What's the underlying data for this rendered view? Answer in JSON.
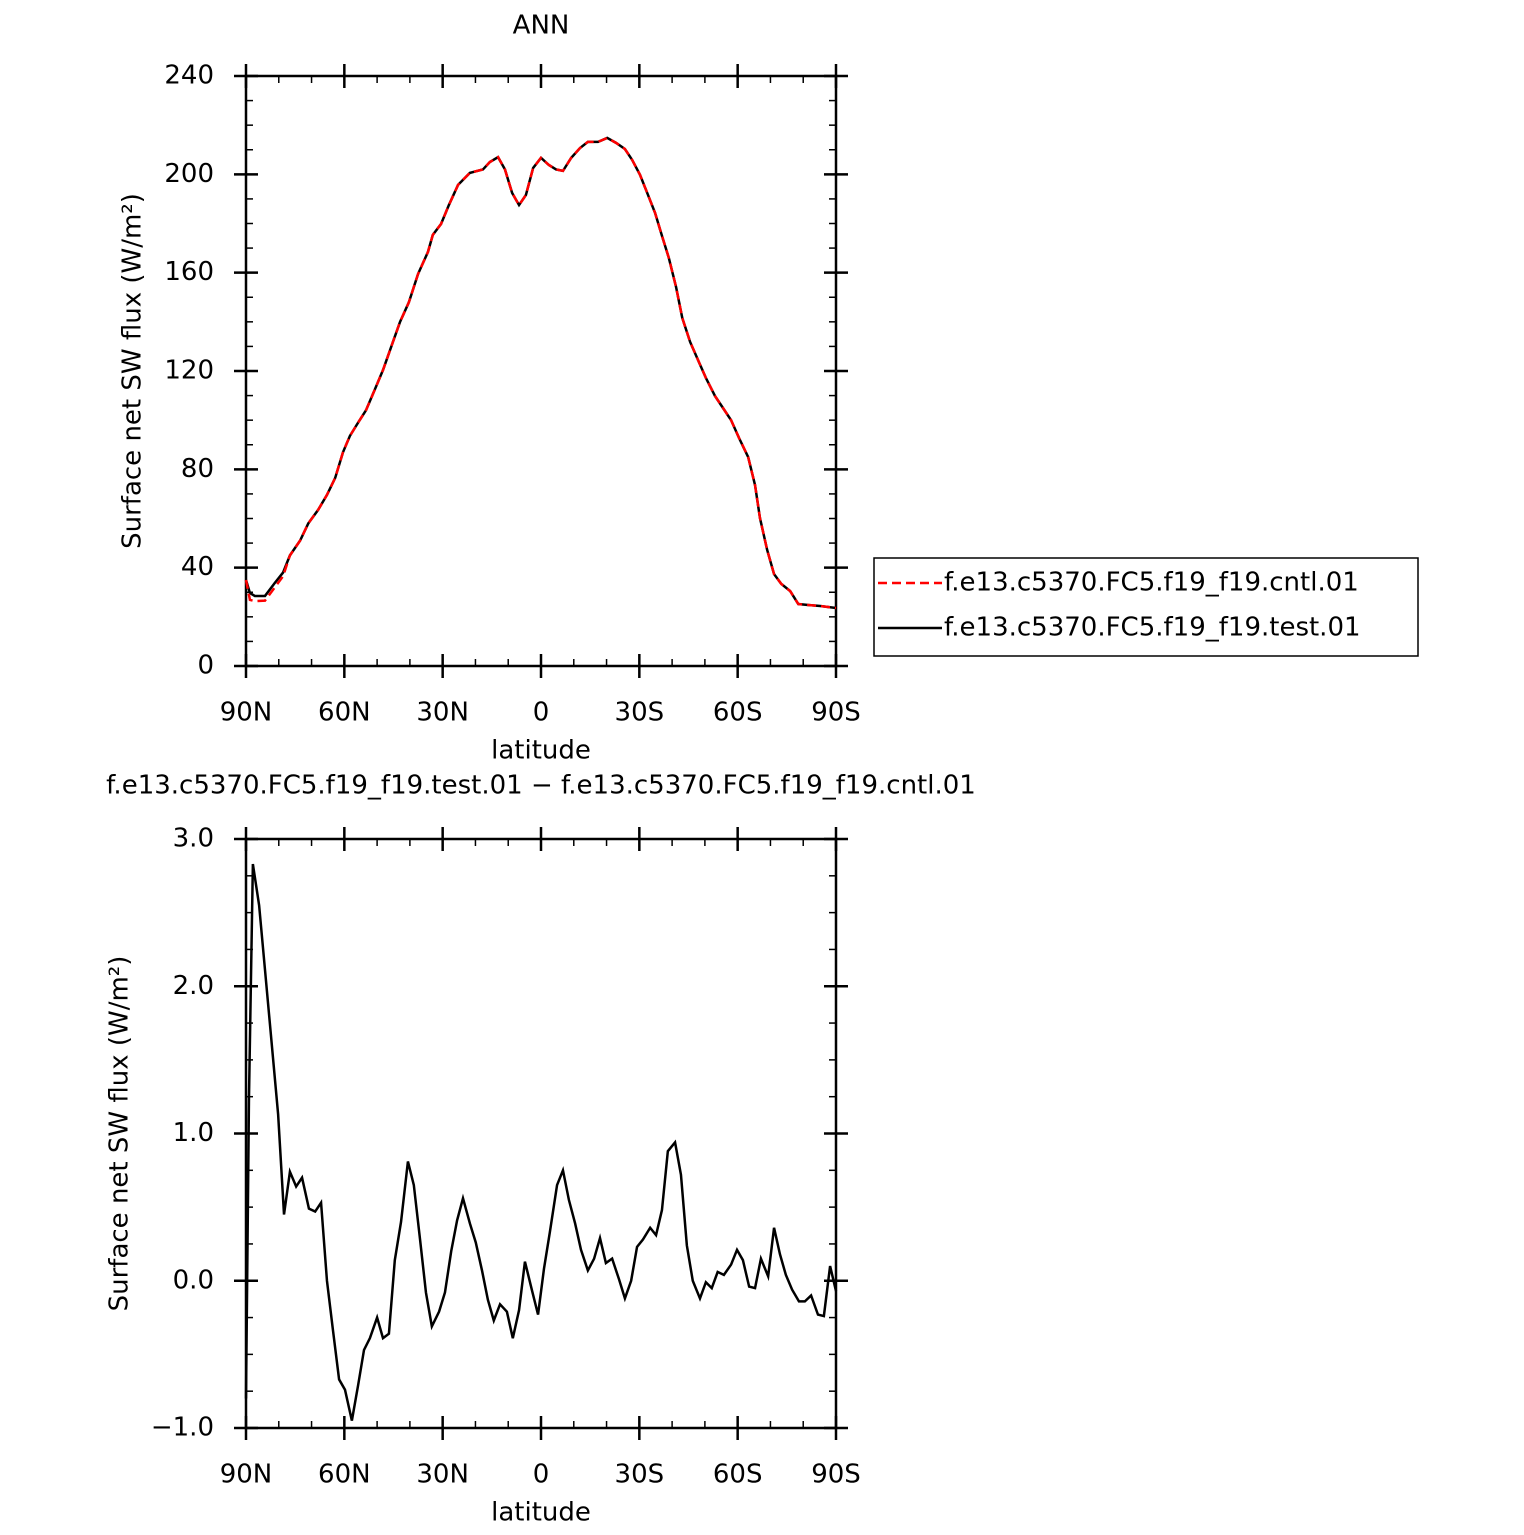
{
  "chart_data": [
    {
      "type": "line",
      "title": "ANN",
      "xlabel": "latitude",
      "ylabel": "Surface net SW flux (W/m²)",
      "xlim": [
        90,
        -90
      ],
      "xticks": [
        {
          "value": 90,
          "label": "90N"
        },
        {
          "value": 60,
          "label": "60N"
        },
        {
          "value": 30,
          "label": "30N"
        },
        0,
        {
          "value": -30,
          "label": "30S"
        },
        {
          "value": -60,
          "label": "60S"
        },
        {
          "value": -90,
          "label": "90S"
        }
      ],
      "ylim": [
        0,
        240
      ],
      "yticks": [
        0,
        40,
        80,
        120,
        160,
        200,
        240
      ],
      "legend": "right",
      "x": [
        90,
        88.8,
        87.3,
        84.2,
        81.2,
        78.7,
        76.6,
        73.5,
        71,
        68,
        65.3,
        62.8,
        60.4,
        58.3,
        55.8,
        53.4,
        51,
        48.2,
        45.5,
        43,
        40.3,
        37.5,
        34.5,
        33,
        30.5,
        28.1,
        25.3,
        21.7,
        17.7,
        15.6,
        13.1,
        11,
        8.8,
        6.7,
        4.6,
        2.4,
        0,
        -2.4,
        -4.6,
        -6.7,
        -9.2,
        -11.9,
        -14.3,
        -17.4,
        -20.2,
        -22.9,
        -25.6,
        -27.8,
        -30.2,
        -32.3,
        -34.8,
        -36.9,
        -39,
        -41.2,
        -43.1,
        -45.5,
        -47.9,
        -50.3,
        -53.1,
        -55.5,
        -58,
        -60.4,
        -63.2,
        -65.3,
        -66.8,
        -69,
        -71.1,
        -73.3,
        -76,
        -78.5,
        -81.5,
        -85.2,
        -90
      ],
      "series": [
        {
          "name": "f.e13.c5370.FC5.f19_f19.cntl.01",
          "color": "#ff0000",
          "style": "dashed",
          "values": [
            35,
            26.9,
            26.4,
            26.6,
            32,
            36.5,
            45,
            51,
            58,
            63.5,
            69.6,
            76.5,
            87,
            93.6,
            99,
            104,
            111.5,
            120.4,
            130.6,
            140,
            148,
            159.5,
            168.4,
            175.4,
            179.8,
            187.5,
            195.7,
            200.6,
            202,
            205,
            207,
            202,
            192.4,
            187.5,
            191.6,
            202.6,
            206.7,
            203.8,
            202,
            201.4,
            206.7,
            210.7,
            213.2,
            213.2,
            214.8,
            212.8,
            210.3,
            205.9,
            199.8,
            192.8,
            184.3,
            175,
            166,
            154.2,
            141.6,
            131.8,
            124.5,
            117.2,
            109.8,
            105,
            100,
            92.8,
            85,
            73.6,
            60.2,
            47.2,
            37.4,
            33.4,
            30.5,
            25.2,
            24.8,
            24.4,
            23.6
          ]
        },
        {
          "name": "f.e13.c5370.FC5.f19_f19.test.01",
          "color": "#000000",
          "style": "solid",
          "values": [
            35,
            29.7,
            28.5,
            28.5,
            33.8,
            38,
            45,
            51,
            58,
            63.5,
            69.6,
            76.5,
            87,
            93.6,
            99,
            104,
            111.5,
            120.4,
            130.6,
            140,
            148,
            159.5,
            168.4,
            175.4,
            179.8,
            187.5,
            195.7,
            200.6,
            202,
            205,
            207,
            202,
            192.4,
            187.5,
            191.6,
            202.6,
            206.7,
            203.8,
            202,
            201.4,
            206.7,
            210.7,
            213.2,
            213.2,
            214.8,
            212.8,
            210.3,
            205.9,
            199.8,
            192.8,
            184.3,
            175,
            166,
            154.2,
            141.6,
            131.8,
            124.5,
            117.2,
            109.8,
            105,
            100,
            92.8,
            85,
            73.6,
            60.2,
            47.2,
            37.4,
            33.4,
            30.5,
            25.2,
            24.8,
            24.4,
            23.6
          ]
        }
      ]
    },
    {
      "type": "line",
      "title": "f.e13.c5370.FC5.f19_f19.test.01 − f.e13.c5370.FC5.f19_f19.cntl.01",
      "xlabel": "latitude",
      "ylabel": "Surface net SW flux (W/m²)",
      "xlim": [
        90,
        -90
      ],
      "xticks": [
        {
          "value": 90,
          "label": "90N"
        },
        {
          "value": 60,
          "label": "60N"
        },
        {
          "value": 30,
          "label": "30N"
        },
        0,
        {
          "value": -30,
          "label": "30S"
        },
        {
          "value": -60,
          "label": "60S"
        },
        {
          "value": -90,
          "label": "90S"
        }
      ],
      "ylim": [
        -1,
        3
      ],
      "yticks": [
        {
          "value": -1,
          "label": "−1.0"
        },
        {
          "value": 0,
          "label": "0.0"
        },
        {
          "value": 1,
          "label": "1.0"
        },
        {
          "value": 2,
          "label": "2.0"
        },
        {
          "value": 3,
          "label": "3.0"
        }
      ],
      "x": [
        90,
        89.1,
        87.9,
        86,
        84.2,
        82.4,
        80.2,
        78.4,
        76.6,
        74.7,
        72.9,
        70.8,
        68.9,
        67.1,
        65.3,
        63.5,
        61.6,
        59.8,
        57.7,
        55.8,
        54,
        52.2,
        50,
        48.2,
        46.4,
        44.6,
        42.7,
        40.6,
        38.8,
        36.9,
        35.1,
        33.3,
        31.1,
        29.3,
        27.4,
        25.6,
        23.8,
        21.7,
        19.9,
        18,
        16.2,
        14.4,
        12.5,
        10.4,
        8.6,
        6.7,
        4.9,
        2.7,
        0.9,
        -0.9,
        -2.7,
        -4.9,
        -6.7,
        -8.5,
        -10.4,
        -12.2,
        -14.3,
        -16.2,
        -18,
        -19.8,
        -21.7,
        -23.8,
        -25.6,
        -27.5,
        -29.3,
        -31.1,
        -33.3,
        -35.1,
        -36.9,
        -38.7,
        -40.9,
        -42.7,
        -44.5,
        -46.3,
        -48.5,
        -50.3,
        -52.1,
        -53.9,
        -55.8,
        -58,
        -59.8,
        -61.6,
        -63.5,
        -65.3,
        -67.1,
        -69.3,
        -71.1,
        -72.9,
        -74.7,
        -76.6,
        -78.7,
        -80.5,
        -82.4,
        -84.5,
        -86.3,
        -88.2,
        -90
      ],
      "series": [
        {
          "color": "#000000",
          "style": "solid",
          "values": [
            -0.8,
            1.23,
            2.83,
            2.55,
            2.11,
            1.67,
            1.13,
            0.45,
            0.74,
            0.64,
            0.7,
            0.49,
            0.47,
            0.53,
            0,
            -0.33,
            -0.67,
            -0.74,
            -0.95,
            -0.71,
            -0.47,
            -0.39,
            -0.25,
            -0.39,
            -0.36,
            0.14,
            0.4,
            0.81,
            0.65,
            0.28,
            -0.08,
            -0.31,
            -0.21,
            -0.08,
            0.2,
            0.41,
            0.56,
            0.39,
            0.26,
            0.07,
            -0.13,
            -0.27,
            -0.16,
            -0.21,
            -0.39,
            -0.2,
            0.13,
            -0.07,
            -0.23,
            0.08,
            0.33,
            0.65,
            0.75,
            0.55,
            0.39,
            0.21,
            0.07,
            0.15,
            0.29,
            0.12,
            0.15,
            0.01,
            -0.12,
            0,
            0.23,
            0.28,
            0.36,
            0.31,
            0.48,
            0.88,
            0.94,
            0.72,
            0.24,
            0,
            -0.12,
            -0.01,
            -0.05,
            0.06,
            0.04,
            0.11,
            0.21,
            0.14,
            -0.04,
            -0.05,
            0.15,
            0.03,
            0.36,
            0.18,
            0.04,
            -0.06,
            -0.14,
            -0.14,
            -0.1,
            -0.23,
            -0.24,
            0.1,
            -0.07
          ]
        }
      ]
    }
  ]
}
